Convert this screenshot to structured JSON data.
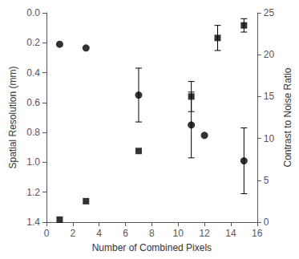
{
  "chart_data": {
    "type": "scatter",
    "xlabel": "Number of Combined Pixels",
    "ylabel": "Spatial Resolution (mm)",
    "y2label": "Contrast to Noise Ratio",
    "xlim": [
      0,
      16
    ],
    "xticks": [
      0,
      2,
      4,
      6,
      8,
      10,
      12,
      14,
      16
    ],
    "ylim": [
      1.4,
      0.0
    ],
    "yticks": [
      {
        "value": 0,
        "label": "0.0"
      },
      0.2,
      0.4,
      0.6,
      0.8,
      {
        "value": 1,
        "label": "1.0"
      },
      1.2,
      1.4
    ],
    "y2lim": [
      0,
      25
    ],
    "y2ticks": [
      0,
      5,
      10,
      15,
      20,
      25
    ],
    "grid": false,
    "series": [
      {
        "x": [
          1,
          3,
          7,
          11,
          12,
          15
        ],
        "values": [
          0.21,
          0.235,
          0.55,
          0.75,
          0.82,
          0.99
        ],
        "errors": [
          0.0,
          0.0,
          0.18,
          0.22,
          0.0,
          0.22
        ],
        "marker": "circle",
        "color": "black"
      },
      {
        "x": [
          1,
          3,
          7,
          11,
          13,
          15
        ],
        "values": [
          0.3,
          2.5,
          8.5,
          15.0,
          22.0,
          23.5
        ],
        "errors": [
          0.0,
          0.0,
          0.0,
          1.8,
          1.5,
          0.8
        ],
        "marker": "square",
        "color": "black",
        "axis": "y2"
      }
    ]
  }
}
